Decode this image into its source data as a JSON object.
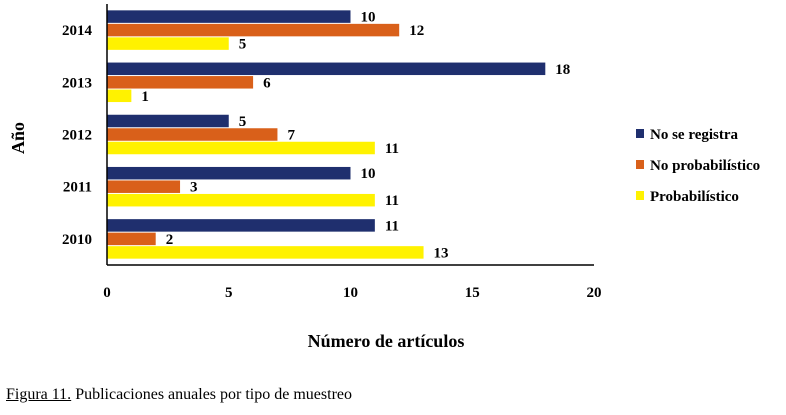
{
  "chart_data": {
    "type": "bar",
    "orientation": "horizontal",
    "categories": [
      "2010",
      "2011",
      "2012",
      "2013",
      "2014"
    ],
    "series": [
      {
        "name": "No se registra",
        "values": [
          11,
          10,
          5,
          18,
          10
        ],
        "color": "#1f2f6e"
      },
      {
        "name": "No probabilístico",
        "values": [
          2,
          3,
          7,
          6,
          12
        ],
        "color": "#d9601a"
      },
      {
        "name": "Probabilístico",
        "values": [
          13,
          11,
          11,
          1,
          5
        ],
        "color": "#fff200"
      }
    ],
    "xlabel": "Número de artículos",
    "ylabel": "Año",
    "xlim": [
      0,
      20
    ],
    "xticks": [
      0,
      5,
      10,
      15,
      20
    ],
    "grid": false,
    "legend_position": "right"
  },
  "caption": {
    "figure_number": "Figura 11.",
    "text": " Publicaciones anuales por tipo de muestreo"
  }
}
